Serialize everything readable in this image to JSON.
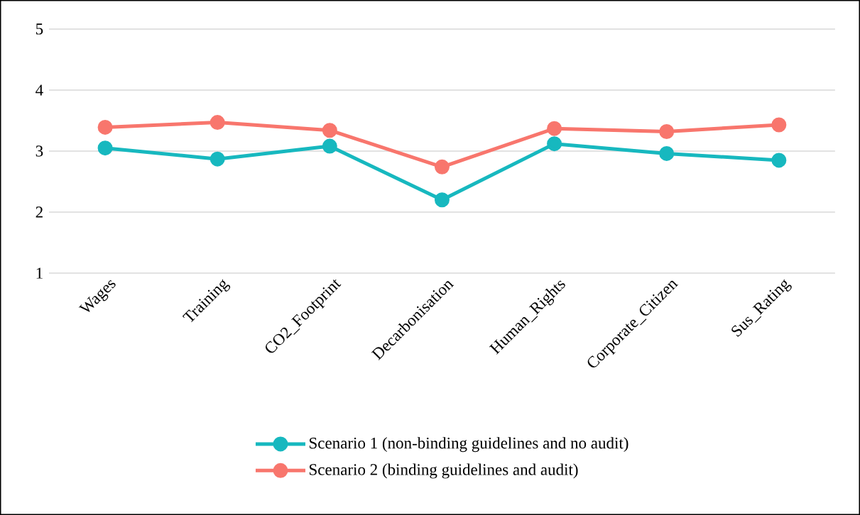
{
  "chart_data": {
    "type": "line",
    "categories": [
      "Wages",
      "Training",
      "CO2_Footprint",
      "Decarbonisation",
      "Human_Rights",
      "Corporate_Citizen",
      "Sus_Rating"
    ],
    "series": [
      {
        "name": "Scenario 1 (non-binding guidelines and no audit)",
        "color": "#17b8bf",
        "values": [
          3.05,
          2.87,
          3.08,
          2.2,
          3.12,
          2.96,
          2.85
        ]
      },
      {
        "name": "Scenario 2 (binding guidelines and audit)",
        "color": "#f8766d",
        "values": [
          3.39,
          3.47,
          3.34,
          2.74,
          3.37,
          3.32,
          3.43
        ]
      }
    ],
    "ylim": [
      1,
      5
    ],
    "yticks": [
      1,
      2,
      3,
      4,
      5
    ],
    "grid": "y",
    "legend": "bottom",
    "marker": "circle",
    "line_style": "solid"
  }
}
